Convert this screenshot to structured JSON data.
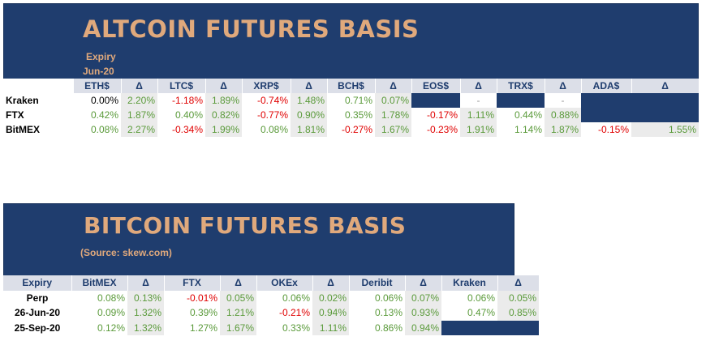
{
  "altcoin": {
    "title": "ALTCOIN FUTURES BASIS",
    "expiry_label": "Expiry",
    "expiry_value": "Jun-20",
    "headers": [
      "ETH$",
      "Δ",
      "LTC$",
      "Δ",
      "XRP$",
      "Δ",
      "BCH$",
      "Δ",
      "EOS$",
      "Δ",
      "TRX$",
      "Δ",
      "ADA$",
      "Δ"
    ],
    "rows": [
      {
        "exchange": "Kraken",
        "cells": [
          {
            "text": "0.00%",
            "cls": "v zero"
          },
          {
            "text": "2.20%",
            "cls": "d pos"
          },
          {
            "text": "-1.18%",
            "cls": "v neg"
          },
          {
            "text": "1.89%",
            "cls": "d pos"
          },
          {
            "text": "-0.74%",
            "cls": "v neg"
          },
          {
            "text": "1.48%",
            "cls": "d pos"
          },
          {
            "text": "0.71%",
            "cls": "v pos"
          },
          {
            "text": "0.07%",
            "cls": "d pos"
          },
          {
            "text": "",
            "cls": "na"
          },
          {
            "text": "-",
            "cls": "dash"
          },
          {
            "text": "",
            "cls": "na"
          },
          {
            "text": "-",
            "cls": "dash"
          },
          {
            "text": "",
            "cls": "na"
          },
          {
            "text": "",
            "cls": "na"
          }
        ]
      },
      {
        "exchange": "FTX",
        "cells": [
          {
            "text": "0.42%",
            "cls": "v pos"
          },
          {
            "text": "1.87%",
            "cls": "d pos"
          },
          {
            "text": "0.40%",
            "cls": "v pos"
          },
          {
            "text": "0.82%",
            "cls": "d pos"
          },
          {
            "text": "-0.77%",
            "cls": "v neg"
          },
          {
            "text": "0.90%",
            "cls": "d pos"
          },
          {
            "text": "0.35%",
            "cls": "v pos"
          },
          {
            "text": "1.78%",
            "cls": "d pos"
          },
          {
            "text": "-0.17%",
            "cls": "v neg"
          },
          {
            "text": "1.11%",
            "cls": "d pos"
          },
          {
            "text": "0.44%",
            "cls": "v pos"
          },
          {
            "text": "0.88%",
            "cls": "d pos"
          },
          {
            "text": "",
            "cls": "na"
          },
          {
            "text": "",
            "cls": "na"
          }
        ]
      },
      {
        "exchange": "BitMEX",
        "cells": [
          {
            "text": "0.08%",
            "cls": "v pos"
          },
          {
            "text": "2.27%",
            "cls": "d pos"
          },
          {
            "text": "-0.34%",
            "cls": "v neg"
          },
          {
            "text": "1.99%",
            "cls": "d pos"
          },
          {
            "text": "0.08%",
            "cls": "v pos"
          },
          {
            "text": "1.81%",
            "cls": "d pos"
          },
          {
            "text": "-0.27%",
            "cls": "v neg"
          },
          {
            "text": "1.67%",
            "cls": "d pos"
          },
          {
            "text": "-0.23%",
            "cls": "v neg"
          },
          {
            "text": "1.91%",
            "cls": "d pos"
          },
          {
            "text": "1.14%",
            "cls": "v pos"
          },
          {
            "text": "1.87%",
            "cls": "d pos"
          },
          {
            "text": "-0.15%",
            "cls": "v neg"
          },
          {
            "text": "1.55%",
            "cls": "d pos"
          }
        ]
      }
    ]
  },
  "bitcoin": {
    "title": "BITCOIN FUTURES BASIS",
    "source": "(Source: skew.com)",
    "expiry_header": "Expiry",
    "headers": [
      "BitMEX",
      "Δ",
      "FTX",
      "Δ",
      "OKEx",
      "Δ",
      "Deribit",
      "Δ",
      "Kraken",
      "Δ"
    ],
    "rows": [
      {
        "expiry": "Perp",
        "cells": [
          {
            "text": "0.08%",
            "cls": "v pos"
          },
          {
            "text": "0.13%",
            "cls": "d pos"
          },
          {
            "text": "-0.01%",
            "cls": "v neg"
          },
          {
            "text": "0.05%",
            "cls": "d pos"
          },
          {
            "text": "0.06%",
            "cls": "v pos"
          },
          {
            "text": "0.02%",
            "cls": "d pos"
          },
          {
            "text": "0.06%",
            "cls": "v pos"
          },
          {
            "text": "0.07%",
            "cls": "d pos"
          },
          {
            "text": "0.06%",
            "cls": "v pos"
          },
          {
            "text": "0.05%",
            "cls": "d pos"
          }
        ]
      },
      {
        "expiry": "26-Jun-20",
        "cells": [
          {
            "text": "0.09%",
            "cls": "v pos"
          },
          {
            "text": "1.32%",
            "cls": "d pos"
          },
          {
            "text": "0.39%",
            "cls": "v pos"
          },
          {
            "text": "1.21%",
            "cls": "d pos"
          },
          {
            "text": "-0.21%",
            "cls": "v neg"
          },
          {
            "text": "0.94%",
            "cls": "d pos"
          },
          {
            "text": "0.13%",
            "cls": "v pos"
          },
          {
            "text": "0.93%",
            "cls": "d pos"
          },
          {
            "text": "0.47%",
            "cls": "v pos"
          },
          {
            "text": "0.85%",
            "cls": "d pos"
          }
        ]
      },
      {
        "expiry": "25-Sep-20",
        "cells": [
          {
            "text": "0.12%",
            "cls": "v pos"
          },
          {
            "text": "1.32%",
            "cls": "d pos"
          },
          {
            "text": "1.27%",
            "cls": "v pos"
          },
          {
            "text": "1.67%",
            "cls": "d pos"
          },
          {
            "text": "0.33%",
            "cls": "v pos"
          },
          {
            "text": "1.11%",
            "cls": "d pos"
          },
          {
            "text": "0.86%",
            "cls": "v pos"
          },
          {
            "text": "0.94%",
            "cls": "d pos"
          },
          {
            "text": "",
            "cls": "na"
          },
          {
            "text": "",
            "cls": "na"
          }
        ]
      }
    ]
  },
  "colors": {
    "panel": "#1f3d6e",
    "title": "#e0a97c",
    "positive": "#5a9a3a",
    "negative": "#e00000",
    "header_bg": "#dcdfe8",
    "delta_bg": "#ebebeb"
  }
}
